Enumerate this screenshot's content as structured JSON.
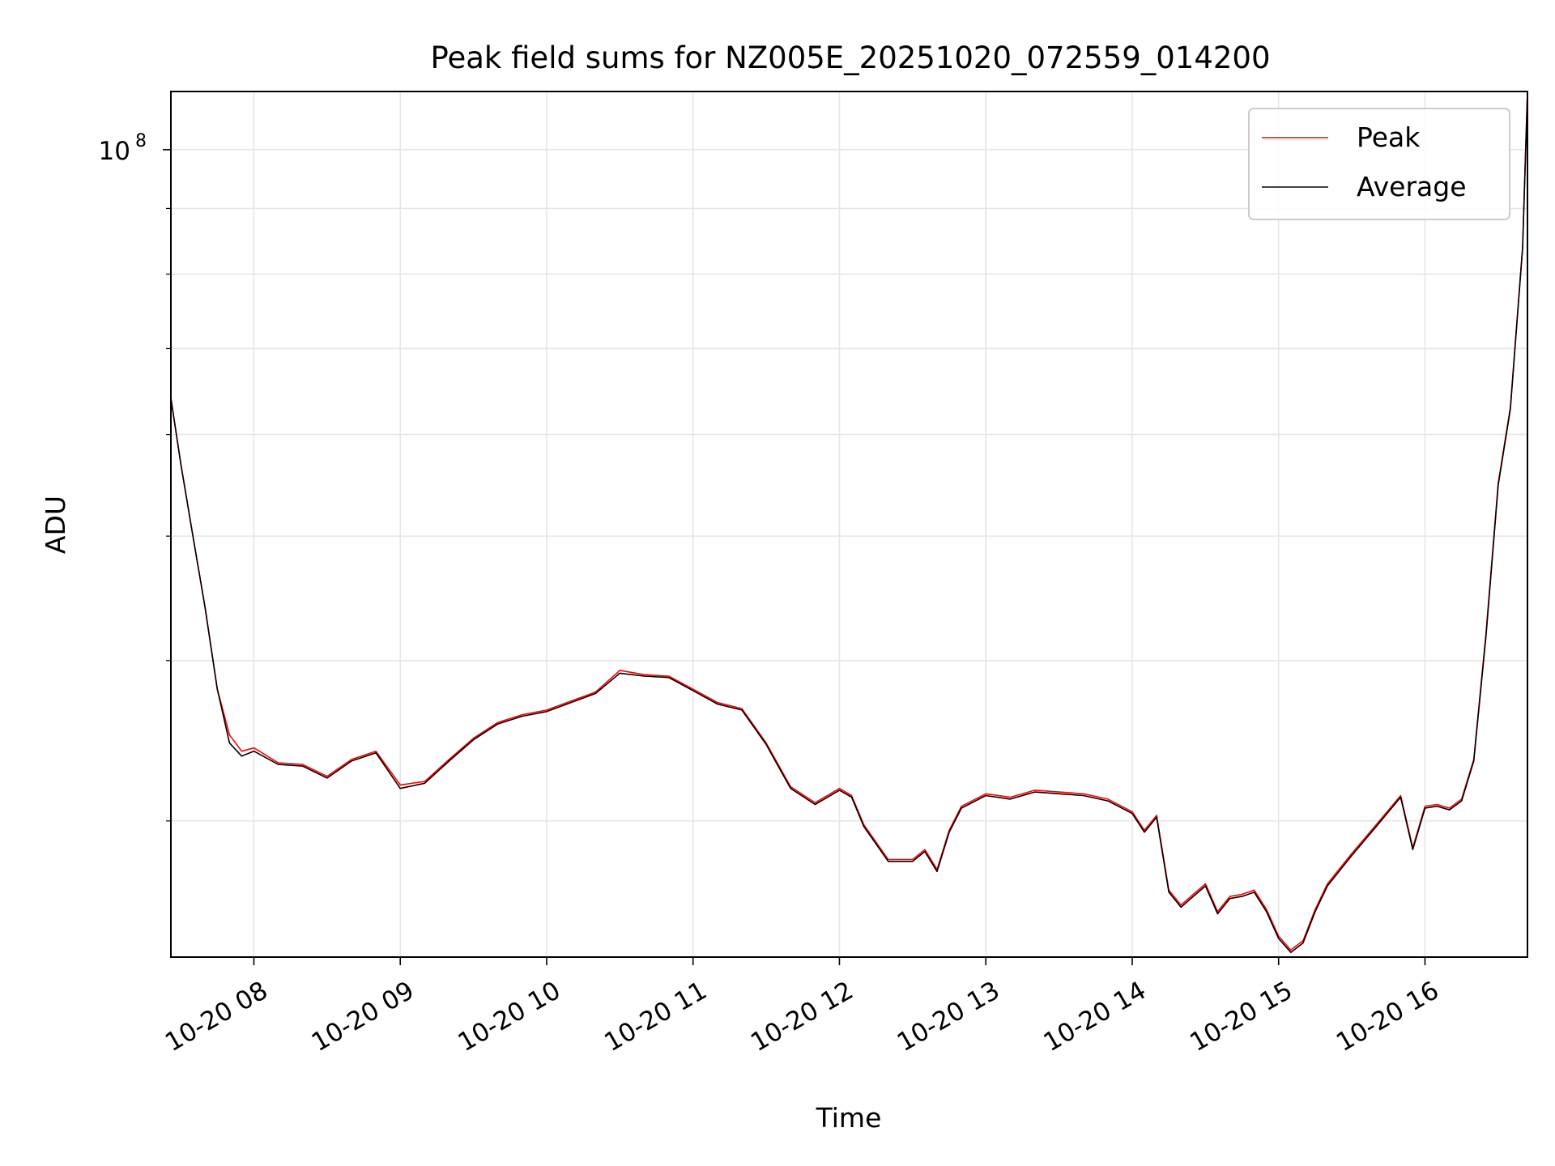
{
  "chart_data": {
    "type": "line",
    "title": "Peak field sums for NZ005E_20251020_072559_014200",
    "xlabel": "Time",
    "ylabel": "ADU",
    "x_ticks": [
      "10-20 08",
      "10-20 09",
      "10-20 10",
      "10-20 11",
      "10-20 12",
      "10-20 13",
      "10-20 14",
      "10-20 15",
      "10-20 16"
    ],
    "y_tick_labels": [
      {
        "base": "10",
        "exp": "8",
        "value": 100000000
      }
    ],
    "x_range": [
      "2025-10-20 07:25:59",
      "2025-10-20 16:42:00"
    ],
    "y_range": [
      23500000,
      111000000
    ],
    "y_scale": "log",
    "grid": true,
    "legend": {
      "location": "upper right",
      "entries": [
        "Peak",
        "Average"
      ]
    },
    "series": [
      {
        "name": "Peak",
        "color": "#ff0000",
        "x": [
          "07:26",
          "07:30",
          "07:35",
          "07:40",
          "07:45",
          "07:50",
          "07:55",
          "08:00",
          "08:10",
          "08:20",
          "08:30",
          "08:40",
          "08:50",
          "09:00",
          "09:10",
          "09:20",
          "09:30",
          "09:40",
          "09:50",
          "10:00",
          "10:10",
          "10:20",
          "10:30",
          "10:40",
          "10:50",
          "11:00",
          "11:10",
          "11:20",
          "11:30",
          "11:40",
          "11:50",
          "12:00",
          "12:05",
          "12:10",
          "12:20",
          "12:30",
          "12:35",
          "12:40",
          "12:45",
          "12:50",
          "13:00",
          "13:10",
          "13:20",
          "13:30",
          "13:40",
          "13:50",
          "14:00",
          "14:05",
          "14:10",
          "14:15",
          "14:20",
          "14:25",
          "14:30",
          "14:35",
          "14:40",
          "14:45",
          "14:50",
          "14:55",
          "15:00",
          "15:05",
          "15:10",
          "15:15",
          "15:20",
          "15:30",
          "15:40",
          "15:50",
          "15:55",
          "16:00",
          "16:05",
          "16:10",
          "16:15",
          "16:20",
          "16:25",
          "16:30",
          "16:35",
          "16:40",
          "16:42"
        ],
        "y": [
          64000000,
          57000000,
          50000000,
          44000000,
          38000000,
          35000000,
          34000000,
          34200000,
          33300000,
          33200000,
          32500000,
          33500000,
          34000000,
          32000000,
          32200000,
          33500000,
          34800000,
          35800000,
          36300000,
          36600000,
          37200000,
          37800000,
          39300000,
          39000000,
          38900000,
          38000000,
          37100000,
          36700000,
          34500000,
          31900000,
          31000000,
          31800000,
          31400000,
          29800000,
          28000000,
          28000000,
          28500000,
          27500000,
          29500000,
          30800000,
          31500000,
          31300000,
          31700000,
          31600000,
          31500000,
          31200000,
          30500000,
          29500000,
          30300000,
          26500000,
          25800000,
          26300000,
          26800000,
          25500000,
          26200000,
          26300000,
          26500000,
          25600000,
          24400000,
          23800000,
          24200000,
          25600000,
          26800000,
          28300000,
          29800000,
          31400000,
          28600000,
          30800000,
          30900000,
          30700000,
          31200000,
          33500000,
          42000000,
          55000000,
          63000000,
          84000000,
          111000000
        ]
      },
      {
        "name": "Average",
        "color": "#000000",
        "x": [
          "07:26",
          "07:30",
          "07:35",
          "07:40",
          "07:45",
          "07:50",
          "07:55",
          "08:00",
          "08:10",
          "08:20",
          "08:30",
          "08:40",
          "08:50",
          "09:00",
          "09:10",
          "09:20",
          "09:30",
          "09:40",
          "09:50",
          "10:00",
          "10:10",
          "10:20",
          "10:30",
          "10:40",
          "10:50",
          "11:00",
          "11:10",
          "11:20",
          "11:30",
          "11:40",
          "11:50",
          "12:00",
          "12:05",
          "12:10",
          "12:20",
          "12:30",
          "12:35",
          "12:40",
          "12:45",
          "12:50",
          "13:00",
          "13:10",
          "13:20",
          "13:30",
          "13:40",
          "13:50",
          "14:00",
          "14:05",
          "14:10",
          "14:15",
          "14:20",
          "14:25",
          "14:30",
          "14:35",
          "14:40",
          "14:45",
          "14:50",
          "14:55",
          "15:00",
          "15:05",
          "15:10",
          "15:15",
          "15:20",
          "15:30",
          "15:40",
          "15:50",
          "15:55",
          "16:00",
          "16:05",
          "16:10",
          "16:15",
          "16:20",
          "16:25",
          "16:30",
          "16:35",
          "16:40",
          "16:42"
        ],
        "y": [
          64000000,
          57000000,
          50000000,
          44000000,
          38000000,
          34500000,
          33700000,
          34000000,
          33200000,
          33100000,
          32400000,
          33400000,
          33900000,
          31800000,
          32100000,
          33400000,
          34700000,
          35700000,
          36200000,
          36500000,
          37100000,
          37700000,
          39100000,
          38900000,
          38800000,
          37900000,
          37000000,
          36600000,
          34400000,
          31800000,
          30900000,
          31700000,
          31300000,
          29700000,
          27900000,
          27900000,
          28400000,
          27400000,
          29400000,
          30700000,
          31400000,
          31200000,
          31600000,
          31500000,
          31400000,
          31100000,
          30400000,
          29400000,
          30200000,
          26400000,
          25700000,
          26200000,
          26700000,
          25400000,
          26100000,
          26200000,
          26400000,
          25500000,
          24300000,
          23700000,
          24100000,
          25500000,
          26700000,
          28200000,
          29700000,
          31300000,
          28500000,
          30700000,
          30800000,
          30600000,
          31100000,
          33400000,
          41800000,
          54800000,
          62800000,
          83800000,
          110800000
        ]
      }
    ]
  }
}
